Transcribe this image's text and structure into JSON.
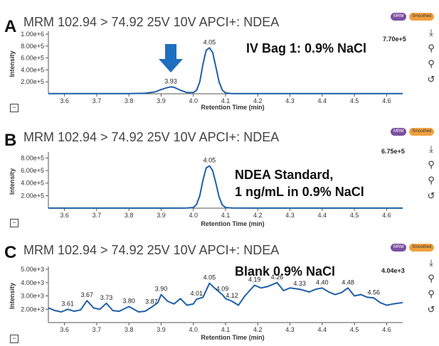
{
  "panels": [
    {
      "letter": "A",
      "title": "MRM 102.94 > 74.92 25V 10V APCI+: NDEA",
      "badges": [
        "MRM",
        "Smoothed"
      ],
      "max_label": "7.70e+5",
      "annotation": [
        "IV Bag 1: 0.9% NaCl"
      ],
      "arrow_color": "#1f6fbf",
      "ytick_labels": [
        "2.00e+5",
        "4.00e+5",
        "6.00e+5",
        "8.00e+5",
        "1.00e+6"
      ]
    },
    {
      "letter": "B",
      "title": "MRM 102.94 > 74.92 25V 10V APCI+: NDEA",
      "badges": [
        "MRM",
        "Smoothed"
      ],
      "max_label": "6.75e+5",
      "annotation": [
        "NDEA Standard,",
        "1 ng/mL in 0.9% NaCl"
      ],
      "ytick_labels": [
        "2.00e+5",
        "4.00e+5",
        "6.00e+5",
        "8.00e+5"
      ]
    },
    {
      "letter": "C",
      "title": "MRM 102.94 > 74.92 25V 10V APCI+: NDEA",
      "badges": [
        "MRM",
        "Smoothed"
      ],
      "max_label": "4.04e+3",
      "annotation": [
        "Blank 0.9% NaCl"
      ],
      "ytick_labels": [
        "2.00e+3",
        "3.00e+3",
        "4.00e+3",
        "5.00e+3"
      ]
    }
  ],
  "toolbar_icons": [
    "download-icon",
    "zoom-out-icon",
    "zoom-in-icon",
    "reset-icon"
  ],
  "chart_data": [
    {
      "type": "line",
      "xlabel": "Retention Time (min)",
      "ylabel": "Intensity",
      "xlim": [
        3.55,
        4.65
      ],
      "ylim": [
        0,
        1000000
      ],
      "xticks": [
        3.6,
        3.7,
        3.8,
        3.9,
        4.0,
        4.1,
        4.2,
        4.3,
        4.4,
        4.5,
        4.6
      ],
      "yticks": [
        200000,
        400000,
        600000,
        800000,
        1000000
      ],
      "line_color": "#1f5fa8",
      "series": [
        {
          "x": [
            3.55,
            3.6,
            3.7,
            3.8,
            3.85,
            3.88,
            3.9,
            3.92,
            3.93,
            3.94,
            3.96,
            3.98,
            4.0,
            4.01,
            4.02,
            4.03,
            4.04,
            4.05,
            4.06,
            4.07,
            4.08,
            4.09,
            4.1,
            4.12,
            4.2,
            4.3,
            4.4,
            4.5,
            4.6,
            4.65
          ],
          "y": [
            2000,
            2000,
            2000,
            3000,
            8000,
            30000,
            70000,
            105000,
            115000,
            108000,
            60000,
            20000,
            20000,
            60000,
            200000,
            500000,
            730000,
            770000,
            690000,
            450000,
            200000,
            60000,
            15000,
            3000,
            2000,
            2000,
            2000,
            2000,
            2000,
            2000
          ]
        }
      ],
      "peak_labels": [
        {
          "x": 3.93,
          "y": 115000,
          "label": "3.93"
        },
        {
          "x": 4.05,
          "y": 770000,
          "label": "4.05"
        }
      ]
    },
    {
      "type": "line",
      "xlabel": "Retention Time (min)",
      "ylabel": "Intensity",
      "xlim": [
        3.55,
        4.65
      ],
      "ylim": [
        0,
        850000
      ],
      "xticks": [
        3.6,
        3.7,
        3.8,
        3.9,
        4.0,
        4.1,
        4.2,
        4.3,
        4.4,
        4.5,
        4.6
      ],
      "yticks": [
        200000,
        400000,
        600000,
        800000
      ],
      "line_color": "#1f5fa8",
      "series": [
        {
          "x": [
            3.55,
            3.6,
            3.7,
            3.8,
            3.9,
            3.98,
            4.0,
            4.01,
            4.02,
            4.03,
            4.04,
            4.05,
            4.06,
            4.07,
            4.08,
            4.09,
            4.1,
            4.12,
            4.2,
            4.3,
            4.4,
            4.5,
            4.6,
            4.65
          ],
          "y": [
            1000,
            1000,
            1000,
            1000,
            1000,
            2000,
            10000,
            60000,
            200000,
            450000,
            640000,
            675000,
            600000,
            400000,
            180000,
            50000,
            10000,
            2000,
            1000,
            1000,
            1000,
            1000,
            1000,
            1000
          ]
        }
      ],
      "peak_labels": [
        {
          "x": 4.05,
          "y": 675000,
          "label": "4.05"
        }
      ]
    },
    {
      "type": "line",
      "xlabel": "Retention Time (min)",
      "ylabel": "Intensity",
      "xlim": [
        3.55,
        4.65
      ],
      "ylim": [
        1000,
        5000
      ],
      "xticks": [
        3.6,
        3.7,
        3.8,
        3.9,
        4.0,
        4.1,
        4.2,
        4.3,
        4.4,
        4.5,
        4.6
      ],
      "yticks": [
        2000,
        3000,
        4000,
        5000
      ],
      "line_color": "#1f5fa8",
      "series": [
        {
          "x": [
            3.55,
            3.57,
            3.59,
            3.61,
            3.63,
            3.65,
            3.67,
            3.69,
            3.71,
            3.73,
            3.75,
            3.77,
            3.8,
            3.83,
            3.85,
            3.87,
            3.89,
            3.9,
            3.92,
            3.94,
            3.96,
            3.98,
            4.0,
            4.01,
            4.03,
            4.05,
            4.07,
            4.09,
            4.1,
            4.12,
            4.14,
            4.16,
            4.19,
            4.21,
            4.23,
            4.26,
            4.28,
            4.3,
            4.33,
            4.36,
            4.38,
            4.4,
            4.42,
            4.44,
            4.46,
            4.48,
            4.5,
            4.52,
            4.54,
            4.56,
            4.58,
            4.6,
            4.62,
            4.65
          ],
          "y": [
            2100,
            1900,
            1800,
            2000,
            1850,
            1950,
            2650,
            2100,
            2000,
            2450,
            1900,
            1850,
            2200,
            1800,
            1850,
            2150,
            2500,
            3100,
            2600,
            2400,
            2800,
            2300,
            2400,
            2750,
            2900,
            3950,
            3500,
            3100,
            2800,
            2600,
            2300,
            3000,
            3800,
            3600,
            3700,
            4000,
            3400,
            3600,
            3500,
            3300,
            3500,
            3600,
            3300,
            3100,
            3250,
            3600,
            3000,
            3100,
            2900,
            2850,
            2500,
            2300,
            2400,
            2500
          ]
        }
      ],
      "peak_labels": [
        {
          "x": 3.61,
          "y": 2000,
          "label": "3.61"
        },
        {
          "x": 3.67,
          "y": 2650,
          "label": "3.67"
        },
        {
          "x": 3.73,
          "y": 2450,
          "label": "3.73"
        },
        {
          "x": 3.8,
          "y": 2200,
          "label": "3.80"
        },
        {
          "x": 3.87,
          "y": 2150,
          "label": "3.87"
        },
        {
          "x": 3.9,
          "y": 3100,
          "label": "3.90"
        },
        {
          "x": 4.01,
          "y": 2750,
          "label": "4.01"
        },
        {
          "x": 4.05,
          "y": 3950,
          "label": "4.05"
        },
        {
          "x": 4.09,
          "y": 3100,
          "label": "4.09"
        },
        {
          "x": 4.12,
          "y": 2600,
          "label": "4.12"
        },
        {
          "x": 4.19,
          "y": 3800,
          "label": "4.19"
        },
        {
          "x": 4.26,
          "y": 4000,
          "label": "4.26"
        },
        {
          "x": 4.33,
          "y": 3500,
          "label": "4.33"
        },
        {
          "x": 4.4,
          "y": 3600,
          "label": "4.40"
        },
        {
          "x": 4.48,
          "y": 3600,
          "label": "4.48"
        },
        {
          "x": 4.56,
          "y": 2850,
          "label": "4.56"
        }
      ]
    }
  ]
}
